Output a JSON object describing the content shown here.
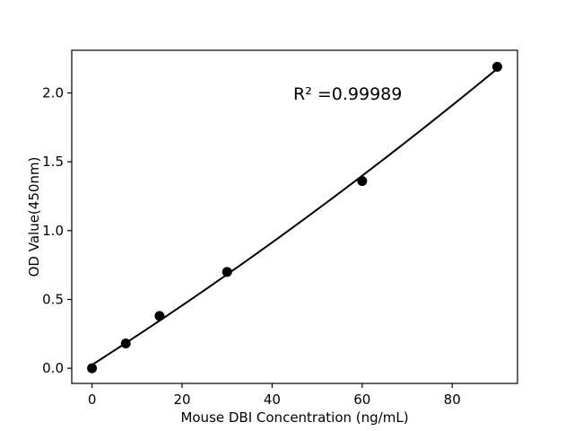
{
  "figure": {
    "background": "#ffffff",
    "foreground": "#000000"
  },
  "chart_data": {
    "type": "scatter",
    "title": "",
    "xlabel": "Mouse DBI Concentration (ng/mL)",
    "ylabel": "OD Value(450nm)",
    "annotation": "R² =0.99989",
    "annotation_xy": [
      44.7,
      1.95
    ],
    "x": [
      0,
      7.5,
      15,
      30,
      60,
      90
    ],
    "y": [
      0.0,
      0.18,
      0.38,
      0.7,
      1.36,
      2.19
    ],
    "fit_type": "quadratic",
    "xlim": [
      -4.5,
      94.5
    ],
    "ylim": [
      -0.11,
      2.31
    ],
    "x_tick_values": [
      0,
      20,
      40,
      60,
      80
    ],
    "x_tick_labels": [
      "0",
      "20",
      "40",
      "60",
      "80"
    ],
    "y_tick_values": [
      0.0,
      0.5,
      1.0,
      1.5,
      2.0
    ],
    "y_tick_labels": [
      "0.0",
      "0.5",
      "1.0",
      "1.5",
      "2.0"
    ],
    "grid": false,
    "legend": null,
    "marker_color": "#000000",
    "line_color": "#000000",
    "spine_color": "#000000"
  }
}
